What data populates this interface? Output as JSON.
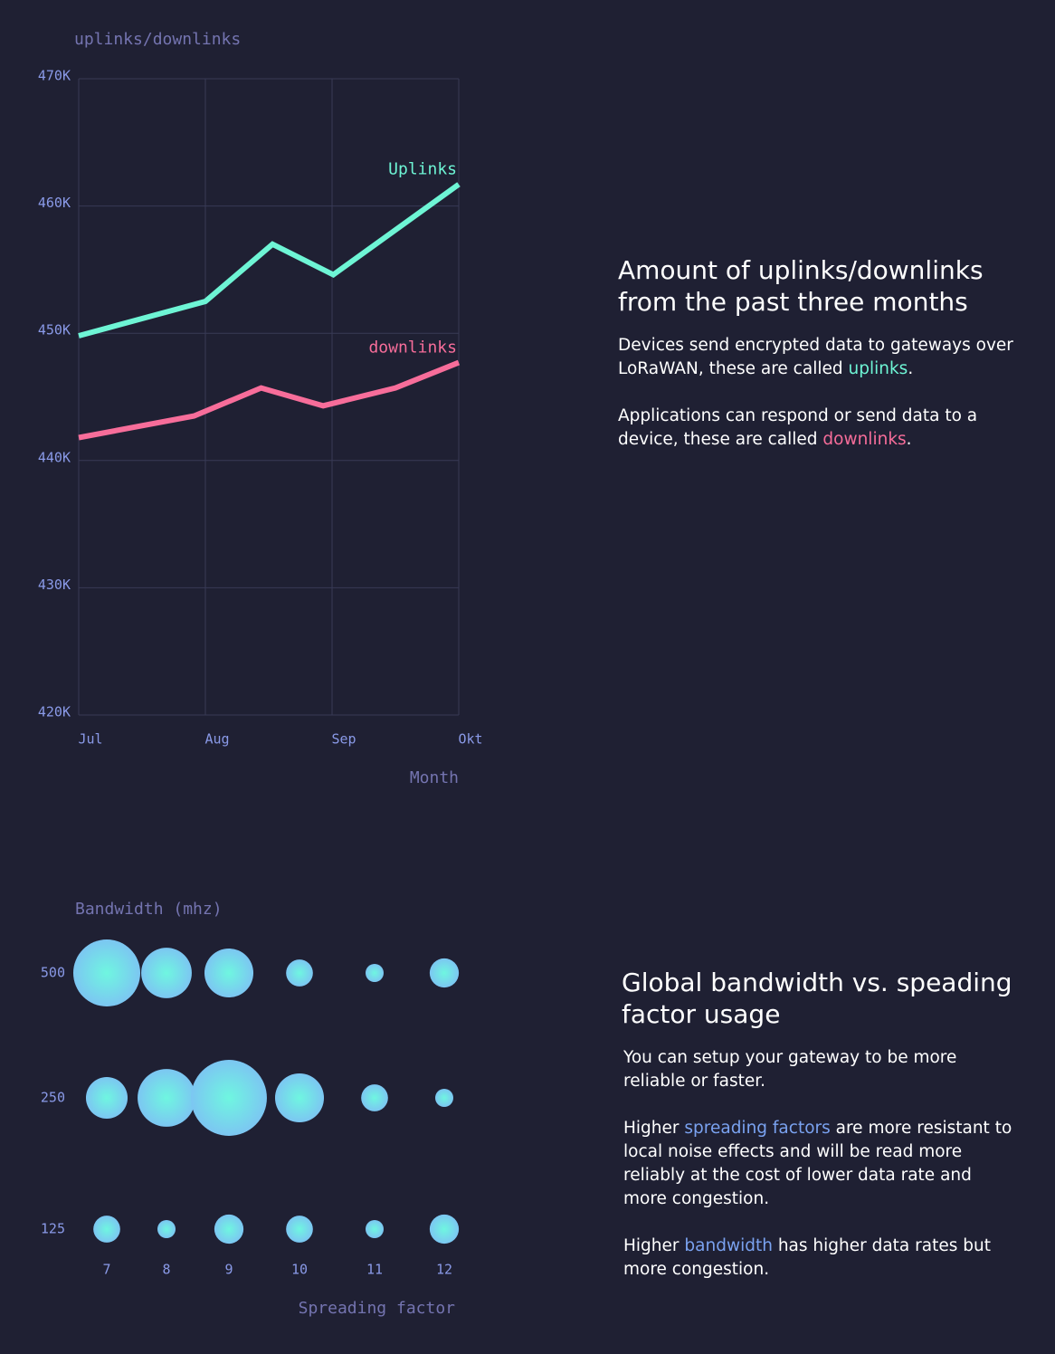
{
  "chart_data": [
    {
      "type": "line",
      "y_label": "uplinks/downlinks",
      "x_label": "Month",
      "xlim": [
        0,
        3
      ],
      "xticks": [
        {
          "value": 0,
          "label": "Jul"
        },
        {
          "value": 1,
          "label": "Aug"
        },
        {
          "value": 2,
          "label": "Sep"
        },
        {
          "value": 3,
          "label": "Okt"
        }
      ],
      "ylim": [
        420000,
        470000
      ],
      "yticks": [
        {
          "value": 420000,
          "label": "420K"
        },
        {
          "value": 430000,
          "label": "430K"
        },
        {
          "value": 440000,
          "label": "440K"
        },
        {
          "value": 450000,
          "label": "450K"
        },
        {
          "value": 460000,
          "label": "460K"
        },
        {
          "value": 470000,
          "label": "470K"
        }
      ],
      "grid": true,
      "series": [
        {
          "name": "Uplinks",
          "color": "#6ef5d5",
          "x": [
            0,
            1,
            1.53,
            2.01,
            3
          ],
          "values": [
            449800,
            452500,
            457000,
            454600,
            461700
          ]
        },
        {
          "name": "downlinks",
          "color": "#f76d9a",
          "x": [
            0,
            0.91,
            1.44,
            1.93,
            2.5,
            3
          ],
          "values": [
            441800,
            443500,
            445700,
            444300,
            445700,
            447700
          ]
        }
      ]
    },
    {
      "type": "bubble",
      "y_label": "Bandwidth (mhz)",
      "x_label": "Spreading factor",
      "categories": [
        "7",
        "8",
        "9",
        "10",
        "11",
        "12"
      ],
      "series": [
        {
          "name": "500",
          "values": [
            137,
            78,
            73,
            22,
            10,
            26
          ]
        },
        {
          "name": "250",
          "values": [
            53,
            102,
            176,
            73,
            22,
            10
          ]
        },
        {
          "name": "125",
          "values": [
            22,
            10,
            26,
            22,
            10,
            26
          ]
        }
      ]
    }
  ],
  "panels": [
    {
      "title": "Amount of uplinks/downlinks from the past three months",
      "paragraphs": [
        [
          "Devices send encrypted data to gateways over LoRaWAN, these are called ",
          "uplinks",
          "."
        ],
        [
          "Applications can respond or send data to a device, these are called ",
          "downlinks",
          "."
        ]
      ]
    },
    {
      "title": "Global bandwidth vs. speading factor usage",
      "paragraphs": [
        [
          "You can setup your gateway to be more reliable or faster."
        ],
        [
          "Higher ",
          "spreading factors",
          " are more resistant to local noise effects and will be read more reliably at the cost of lower data rate and more congestion."
        ],
        [
          "Higher ",
          "bandwidth",
          " has higher data rates but more congestion."
        ]
      ]
    }
  ]
}
